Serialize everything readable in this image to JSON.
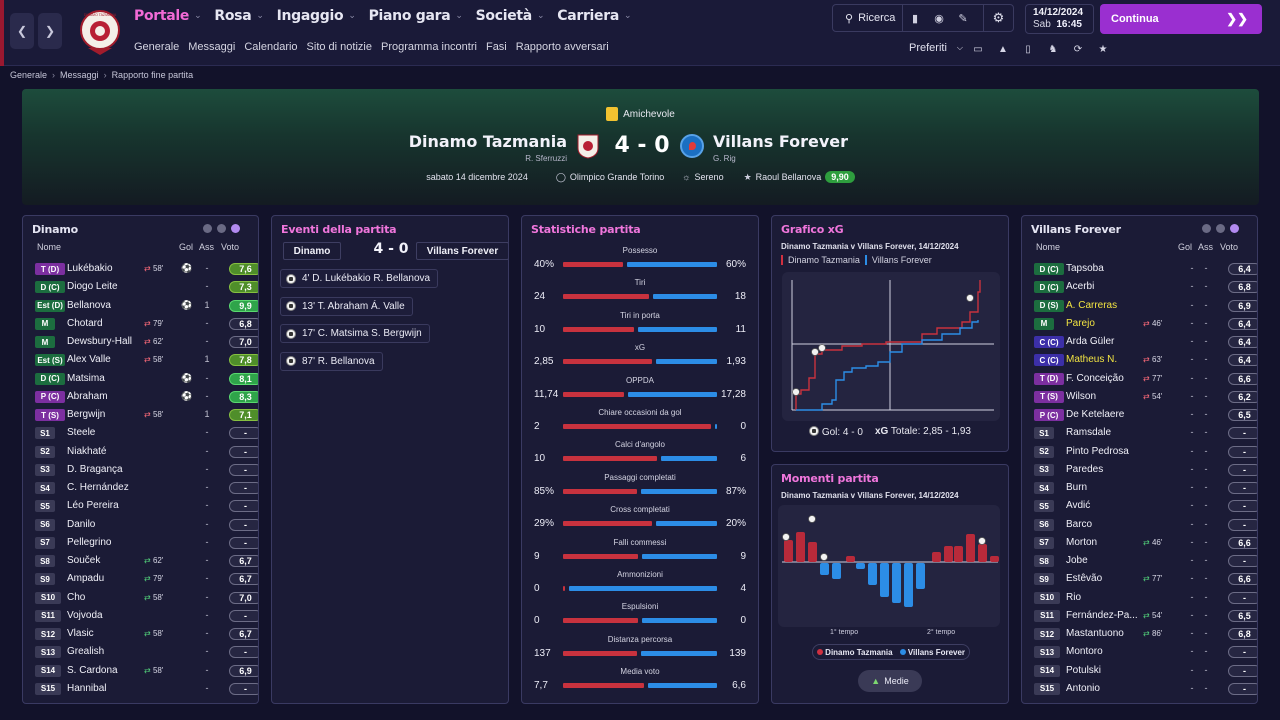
{
  "nav": {
    "menu": [
      {
        "label": "Portale",
        "active": true
      },
      {
        "label": "Rosa"
      },
      {
        "label": "Ingaggio"
      },
      {
        "label": "Piano gara"
      },
      {
        "label": "Società"
      },
      {
        "label": "Carriera"
      }
    ],
    "submenu": [
      "Generale",
      "Messaggi",
      "Calendario",
      "Sito di notizie",
      "Programma incontri",
      "Fasi",
      "Rapporto avversari"
    ],
    "search_label": "Ricerca",
    "date": "14/12/2024",
    "day": "Sab",
    "time": "16:45",
    "continue_label": "Continua",
    "prefs_label": "Preferiti"
  },
  "crest_texts": {
    "home": "DINAMO TAZMANIA"
  },
  "breadcrumb": [
    "Generale",
    "Messaggi",
    "Rapporto fine partita"
  ],
  "match": {
    "competition": "Amichevole",
    "home": "Dinamo Tazmania",
    "away": "Villans Forever",
    "score": "4 - 0",
    "home_manager": "R. Sferruzzi",
    "away_manager": "G. Rig",
    "date": "sabato 14 dicembre 2024",
    "stadium": "Olimpico Grande Torino",
    "weather": "Sereno",
    "pom": "Raoul Bellanova",
    "pom_rating": "9,90"
  },
  "home_panel": {
    "title": "Dinamo",
    "headers": {
      "name": "Nome",
      "gol": "Gol",
      "ass": "Ass",
      "voto": "Voto"
    },
    "players": [
      {
        "pos": "T (D)",
        "name": "Lukébakio",
        "sub": "off",
        "min": "58'",
        "gol": true,
        "ass": "-",
        "vote": "7,6",
        "vc": "g"
      },
      {
        "pos": "D (C)",
        "name": "Diogo Leite",
        "sub": "",
        "min": "",
        "gol": false,
        "ass": "-",
        "vote": "7,3",
        "vc": "g"
      },
      {
        "pos": "Est (D)",
        "name": "Bellanova",
        "sub": "",
        "min": "",
        "gol": true,
        "ass": "1",
        "vote": "9,9",
        "vc": "gg"
      },
      {
        "pos": "M",
        "name": "Chotard",
        "sub": "off",
        "min": "79'",
        "gol": false,
        "ass": "-",
        "vote": "6,8",
        "vc": "n"
      },
      {
        "pos": "M",
        "name": "Dewsbury-Hall",
        "sub": "off",
        "min": "62'",
        "gol": false,
        "ass": "-",
        "vote": "7,0",
        "vc": "n"
      },
      {
        "pos": "Est (S)",
        "name": "Alex Valle",
        "sub": "off",
        "min": "58'",
        "gol": false,
        "ass": "1",
        "vote": "7,8",
        "vc": "g"
      },
      {
        "pos": "D (C)",
        "name": "Matsima",
        "sub": "",
        "min": "",
        "gol": true,
        "ass": "-",
        "vote": "8,1",
        "vc": "gg"
      },
      {
        "pos": "P (C)",
        "name": "Abraham",
        "sub": "",
        "min": "",
        "gol": true,
        "ass": "-",
        "vote": "8,3",
        "vc": "gg"
      },
      {
        "pos": "T (S)",
        "name": "Bergwijn",
        "sub": "off",
        "min": "58'",
        "gol": false,
        "ass": "1",
        "vote": "7,1",
        "vc": "g"
      },
      {
        "pos": "S1",
        "name": "Steele",
        "sub": "",
        "min": "",
        "gol": false,
        "ass": "-",
        "vote": "-",
        "vc": "n"
      },
      {
        "pos": "S2",
        "name": "Niakhaté",
        "sub": "",
        "min": "",
        "gol": false,
        "ass": "-",
        "vote": "-",
        "vc": "n"
      },
      {
        "pos": "S3",
        "name": "D. Bragança",
        "sub": "",
        "min": "",
        "gol": false,
        "ass": "-",
        "vote": "-",
        "vc": "n"
      },
      {
        "pos": "S4",
        "name": "C. Hernández",
        "sub": "",
        "min": "",
        "gol": false,
        "ass": "-",
        "vote": "-",
        "vc": "n"
      },
      {
        "pos": "S5",
        "name": "Léo Pereira",
        "sub": "",
        "min": "",
        "gol": false,
        "ass": "-",
        "vote": "-",
        "vc": "n"
      },
      {
        "pos": "S6",
        "name": "Danilo",
        "sub": "",
        "min": "",
        "gol": false,
        "ass": "-",
        "vote": "-",
        "vc": "n"
      },
      {
        "pos": "S7",
        "name": "Pellegrino",
        "sub": "",
        "min": "",
        "gol": false,
        "ass": "-",
        "vote": "-",
        "vc": "n"
      },
      {
        "pos": "S8",
        "name": "Souček",
        "sub": "on",
        "min": "62'",
        "gol": false,
        "ass": "-",
        "vote": "6,7",
        "vc": "n"
      },
      {
        "pos": "S9",
        "name": "Ampadu",
        "sub": "on",
        "min": "79'",
        "gol": false,
        "ass": "-",
        "vote": "6,7",
        "vc": "n"
      },
      {
        "pos": "S10",
        "name": "Cho",
        "sub": "on",
        "min": "58'",
        "gol": false,
        "ass": "-",
        "vote": "7,0",
        "vc": "n"
      },
      {
        "pos": "S11",
        "name": "Vojvoda",
        "sub": "",
        "min": "",
        "gol": false,
        "ass": "-",
        "vote": "-",
        "vc": "n"
      },
      {
        "pos": "S12",
        "name": "Vlasic",
        "sub": "on",
        "min": "58'",
        "gol": false,
        "ass": "-",
        "vote": "6,7",
        "vc": "n"
      },
      {
        "pos": "S13",
        "name": "Grealish",
        "sub": "",
        "min": "",
        "gol": false,
        "ass": "-",
        "vote": "-",
        "vc": "n"
      },
      {
        "pos": "S14",
        "name": "S. Cardona",
        "sub": "on",
        "min": "58'",
        "gol": false,
        "ass": "-",
        "vote": "6,9",
        "vc": "n"
      },
      {
        "pos": "S15",
        "name": "Hannibal",
        "sub": "",
        "min": "",
        "gol": false,
        "ass": "-",
        "vote": "-",
        "vc": "n"
      }
    ]
  },
  "events_panel": {
    "title": "Eventi della partita",
    "home": "Dinamo",
    "away": "Villans Forever",
    "score": "4 - 0",
    "events": [
      "4'  D. Lukébakio  R. Bellanova",
      "13'  T. Abraham  Á. Valle",
      "17'  C. Matsima  S. Bergwijn",
      "87'  R. Bellanova"
    ]
  },
  "stats_panel": {
    "title": "Statistiche partita",
    "stats": [
      {
        "label": "Possesso",
        "home": "40%",
        "away": "60%",
        "h": 40,
        "a": 60
      },
      {
        "label": "Tiri",
        "home": "24",
        "away": "18",
        "h": 24,
        "a": 18
      },
      {
        "label": "Tiri in porta",
        "home": "10",
        "away": "11",
        "h": 10,
        "a": 11
      },
      {
        "label": "xG",
        "home": "2,85",
        "away": "1,93",
        "h": 2.85,
        "a": 1.93
      },
      {
        "label": "OPPDA",
        "home": "11,74",
        "away": "17,28",
        "h": 11.74,
        "a": 17.28
      },
      {
        "label": "Chiare occasioni da gol",
        "home": "2",
        "away": "0",
        "h": 2,
        "a": 0
      },
      {
        "label": "Calci d'angolo",
        "home": "10",
        "away": "6",
        "h": 10,
        "a": 6
      },
      {
        "label": "Passaggi completati",
        "home": "85%",
        "away": "87%",
        "h": 85,
        "a": 87
      },
      {
        "label": "Cross completati",
        "home": "29%",
        "away": "20%",
        "h": 29,
        "a": 20
      },
      {
        "label": "Falli commessi",
        "home": "9",
        "away": "9",
        "h": 9,
        "a": 9
      },
      {
        "label": "Ammonizioni",
        "home": "0",
        "away": "4",
        "h": 0,
        "a": 4
      },
      {
        "label": "Espulsioni",
        "home": "0",
        "away": "0",
        "h": 0,
        "a": 0
      },
      {
        "label": "Distanza percorsa",
        "home": "137",
        "away": "139",
        "h": 137,
        "a": 139
      },
      {
        "label": "Media voto",
        "home": "7,7",
        "away": "6,6",
        "h": 7.7,
        "a": 6.6
      }
    ]
  },
  "xg_panel": {
    "title": "Grafico xG",
    "subtitle": "Dinamo Tazmania v Villans Forever, 14/12/2024",
    "legend_home": "Dinamo Tazmania",
    "legend_away": "Villans Forever",
    "footer_goals": "Gol: 4 - 0",
    "footer_xg_label": "xG",
    "footer_xg": "Totale: 2,85 - 1,93"
  },
  "moments_panel": {
    "title": "Momenti partita",
    "subtitle": "Dinamo Tazmania v Villans Forever, 14/12/2024",
    "half1": "1° tempo",
    "half2": "2° tempo",
    "legend_home": "Dinamo Tazmania",
    "legend_away": "Villans Forever",
    "button": "Medie"
  },
  "away_panel": {
    "title": "Villans Forever",
    "headers": {
      "name": "Nome",
      "gol": "Gol",
      "ass": "Ass",
      "voto": "Voto"
    },
    "players": [
      {
        "pos": "D (C)",
        "name": "Tapsoba",
        "sub": "",
        "min": "",
        "y": false,
        "vote": "6,4"
      },
      {
        "pos": "D (C)",
        "name": "Acerbi",
        "sub": "",
        "min": "",
        "y": false,
        "vote": "6,8"
      },
      {
        "pos": "D (S)",
        "name": "A. Carreras",
        "sub": "",
        "min": "",
        "y": true,
        "vote": "6,9"
      },
      {
        "pos": "M",
        "name": "Parejo",
        "sub": "off",
        "min": "46'",
        "y": true,
        "vote": "6,4"
      },
      {
        "pos": "C (C)",
        "name": "Arda Güler",
        "sub": "",
        "min": "",
        "y": false,
        "vote": "6,4"
      },
      {
        "pos": "C (C)",
        "name": "Matheus N.",
        "sub": "off",
        "min": "63'",
        "y": true,
        "vote": "6,4"
      },
      {
        "pos": "T (D)",
        "name": "F. Conceição",
        "sub": "off",
        "min": "77'",
        "y": false,
        "vote": "6,6"
      },
      {
        "pos": "T (S)",
        "name": "Wilson",
        "sub": "off",
        "min": "54'",
        "y": false,
        "vote": "6,2"
      },
      {
        "pos": "P (C)",
        "name": "De Ketelaere",
        "sub": "",
        "min": "",
        "y": false,
        "vote": "6,5"
      },
      {
        "pos": "S1",
        "name": "Ramsdale",
        "sub": "",
        "min": "",
        "y": false,
        "vote": "-"
      },
      {
        "pos": "S2",
        "name": "Pinto Pedrosa",
        "sub": "",
        "min": "",
        "y": false,
        "vote": "-"
      },
      {
        "pos": "S3",
        "name": "Paredes",
        "sub": "",
        "min": "",
        "y": false,
        "vote": "-"
      },
      {
        "pos": "S4",
        "name": "Burn",
        "sub": "",
        "min": "",
        "y": false,
        "vote": "-"
      },
      {
        "pos": "S5",
        "name": "Avdić",
        "sub": "",
        "min": "",
        "y": false,
        "vote": "-"
      },
      {
        "pos": "S6",
        "name": "Barco",
        "sub": "",
        "min": "",
        "y": false,
        "vote": "-"
      },
      {
        "pos": "S7",
        "name": "Morton",
        "sub": "on",
        "min": "46'",
        "y": false,
        "vote": "6,6"
      },
      {
        "pos": "S8",
        "name": "Jobe",
        "sub": "",
        "min": "",
        "y": false,
        "vote": "-"
      },
      {
        "pos": "S9",
        "name": "Estêvão",
        "sub": "on",
        "min": "77'",
        "y": false,
        "vote": "6,6"
      },
      {
        "pos": "S10",
        "name": "Rio",
        "sub": "",
        "min": "",
        "y": false,
        "vote": "-"
      },
      {
        "pos": "S11",
        "name": "Fernández-Pa...",
        "sub": "on",
        "min": "54'",
        "y": false,
        "vote": "6,5"
      },
      {
        "pos": "S12",
        "name": "Mastantuono",
        "sub": "on",
        "min": "86'",
        "y": false,
        "vote": "6,8"
      },
      {
        "pos": "S13",
        "name": "Montoro",
        "sub": "",
        "min": "",
        "y": false,
        "vote": "-"
      },
      {
        "pos": "S14",
        "name": "Potulski",
        "sub": "",
        "min": "",
        "y": false,
        "vote": "-"
      },
      {
        "pos": "S15",
        "name": "Antonio",
        "sub": "",
        "min": "",
        "y": false,
        "vote": "-"
      }
    ]
  },
  "colors": {
    "accent": "#f26ad6",
    "continue": "#9a2fd0",
    "home": "#c8323e",
    "away": "#2c8de6",
    "good": "#2fa44a"
  }
}
